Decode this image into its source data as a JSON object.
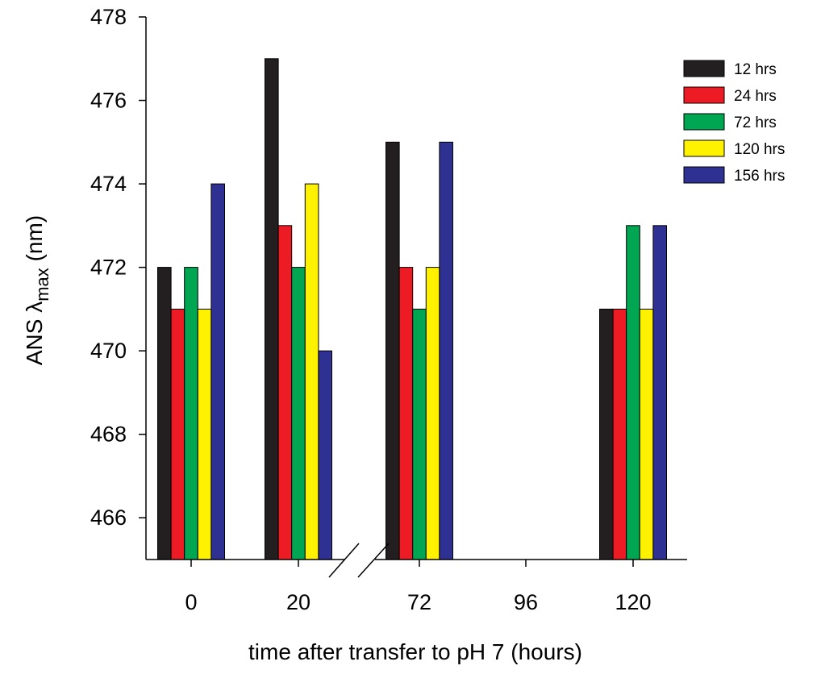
{
  "chart_data": {
    "type": "bar",
    "xlabel": "time after transfer to pH 7 (hours)",
    "ylabel": {
      "prefix": "ANS ",
      "symbol": "λ",
      "subscript": "max",
      "suffix": " (nm)"
    },
    "ylim": [
      465,
      478
    ],
    "yticks": [
      466,
      468,
      470,
      472,
      474,
      476,
      478
    ],
    "categories": [
      "0",
      "20",
      "72",
      "96",
      "120"
    ],
    "axis_break": "between 20 and 72",
    "grid": false,
    "legend_position": "top-right",
    "series": [
      {
        "name": "12 hrs",
        "color": "#231f20",
        "values": [
          472,
          477,
          475,
          null,
          471
        ]
      },
      {
        "name": "24 hrs",
        "color": "#ed1c24",
        "values": [
          471,
          473,
          472,
          null,
          471
        ]
      },
      {
        "name": "72 hrs",
        "color": "#00a651",
        "values": [
          472,
          472,
          471,
          null,
          473
        ]
      },
      {
        "name": "120 hrs",
        "color": "#fff200",
        "values": [
          471,
          474,
          472,
          null,
          471
        ]
      },
      {
        "name": "156 hrs",
        "color": "#2e3192",
        "values": [
          474,
          470,
          475,
          null,
          473
        ]
      }
    ]
  }
}
